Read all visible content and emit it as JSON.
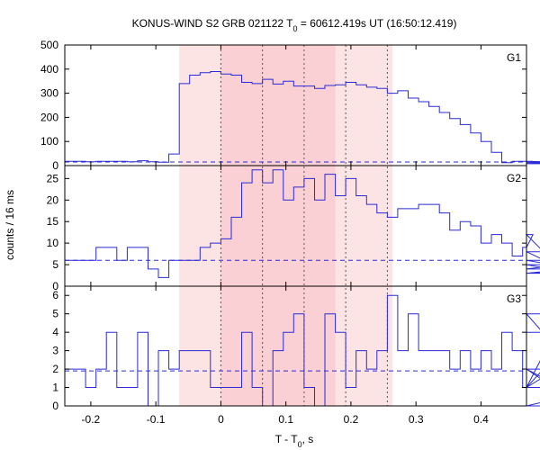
{
  "chart_data": {
    "type": "line",
    "title": "KONUS-WIND S2 GRB 021122 T₀ = 60612.419s UT (16:50:12.419)",
    "title_main": "KONUS-WIND S2 GRB 021122 T",
    "title_sub": "0",
    "title_rest": " = 60612.419s UT (16:50:12.419)",
    "xlabel_main": "T - T",
    "xlabel_sub": "0",
    "xlabel_rest": ", s",
    "ylabel": "counts / 16 ms",
    "xlim": [
      -0.24,
      0.47
    ],
    "x_ticks": [
      "-0.2",
      "-0.1",
      "0",
      "0.1",
      "0.2",
      "0.3",
      "0.4"
    ],
    "x_tick_values": [
      -0.2,
      -0.1,
      0,
      0.1,
      0.2,
      0.3,
      0.4
    ],
    "shaded_regions": [
      {
        "x0": -0.064,
        "x1": 0.264,
        "color": "#fde4e4"
      },
      {
        "x0": 0.0,
        "x1": 0.176,
        "color": "#fbd0d4"
      }
    ],
    "vertical_lines": [
      0.0,
      0.064,
      0.128,
      0.192,
      0.256
    ],
    "bin_width": 0.016,
    "x_start": -0.24,
    "panels": [
      {
        "name": "G1",
        "ylim": [
          0,
          500
        ],
        "y_ticks": [
          0,
          100,
          200,
          300,
          400,
          500
        ],
        "background": 15,
        "values": [
          18,
          18,
          16,
          18,
          18,
          18,
          16,
          20,
          16,
          14,
          48,
          340,
          375,
          385,
          390,
          380,
          375,
          345,
          340,
          358,
          338,
          350,
          330,
          330,
          320,
          332,
          335,
          345,
          335,
          325,
          320,
          300,
          310,
          280,
          265,
          245,
          220,
          195,
          170,
          135,
          100,
          55,
          12,
          18,
          18,
          18,
          16,
          15,
          14,
          16,
          12,
          8,
          10,
          10
        ]
      },
      {
        "name": "G2",
        "ylim": [
          0,
          28
        ],
        "y_ticks": [
          0,
          5,
          10,
          15,
          20,
          25
        ],
        "background": 6,
        "values": [
          6,
          6,
          6,
          9,
          9,
          6,
          9,
          9,
          4,
          2,
          6,
          6,
          6,
          9,
          10,
          11,
          16,
          24,
          27,
          24,
          27,
          20,
          23,
          25,
          20,
          26,
          21,
          25,
          21,
          19,
          17,
          16,
          18,
          18,
          19,
          19,
          17,
          13,
          15,
          14,
          10,
          12,
          10,
          7,
          9,
          12,
          8,
          5,
          5,
          3,
          4,
          6,
          3,
          5
        ]
      },
      {
        "name": "G3",
        "ylim": [
          0,
          6.5
        ],
        "y_ticks": [
          0,
          1,
          2,
          3,
          4,
          5,
          6
        ],
        "background": 1.9,
        "values": [
          2,
          2,
          1,
          2,
          4,
          1,
          1,
          4,
          0,
          3,
          2,
          3,
          3,
          3,
          1,
          1,
          1,
          4,
          1,
          0,
          3,
          4,
          5,
          1,
          0,
          5,
          4,
          1,
          3,
          2,
          3,
          6,
          3,
          5,
          3,
          3,
          3,
          2,
          3,
          2,
          3,
          2,
          4,
          3,
          1,
          1,
          2,
          1,
          5,
          2,
          2,
          0,
          1,
          4
        ]
      }
    ]
  }
}
